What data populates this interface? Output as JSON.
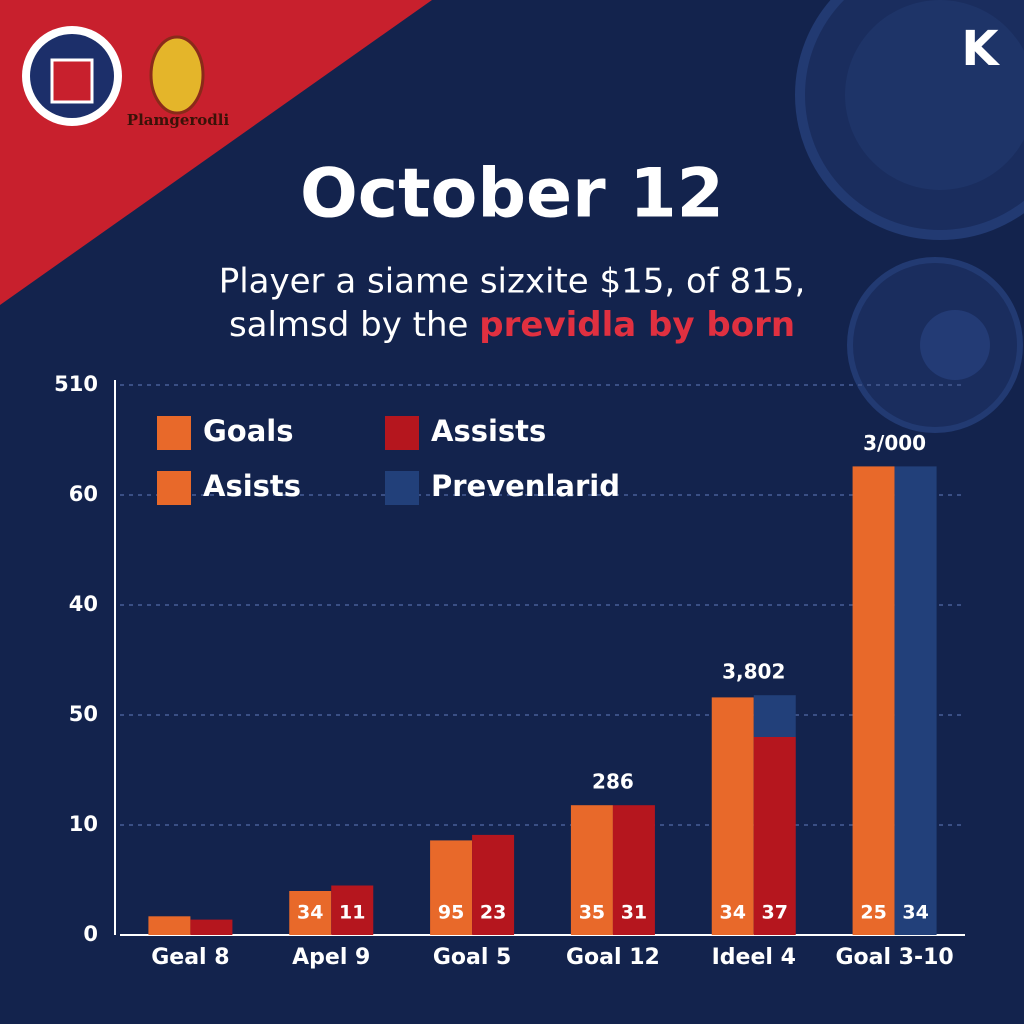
{
  "header": {
    "subtitle_line1": "Player a siame sizxite $15, of 815,",
    "subtitle_line2": "salmsd by the",
    "subtitle_highlight": "previdla by born",
    "logo_text": "Plamgerodli",
    "brand": "K"
  },
  "chart_data": {
    "type": "bar",
    "title": "October 12",
    "categories": [
      "Geal 8",
      "Apel 9",
      "Goal 5",
      "Goal 12",
      "Ideel 4",
      "Goal 3-10"
    ],
    "ylim": [
      0,
      50
    ],
    "yticks": [
      0,
      10,
      {
        "value": 20,
        "label": "50"
      },
      {
        "value": 30,
        "label": "40"
      },
      {
        "value": 40,
        "label": "60"
      },
      {
        "value": 50,
        "label": "510"
      }
    ],
    "grid": true,
    "series": [
      {
        "name": "Goals",
        "color": "#e8692a",
        "values": [
          1.7,
          4.0,
          8.6,
          11.8,
          21.6,
          42.6
        ],
        "bar_labels": [
          null,
          "34",
          "95",
          "35",
          "34",
          "25"
        ]
      },
      {
        "name": "Assists",
        "color": "#b5161e",
        "values": [
          1.4,
          4.5,
          9.1,
          11.8,
          18.0,
          null
        ],
        "bar_labels": [
          null,
          "11",
          "23",
          "31",
          "37",
          null
        ]
      },
      {
        "name": "Asists",
        "color": "#e8692a",
        "values": [
          null,
          null,
          null,
          null,
          null,
          null
        ]
      },
      {
        "name": "Prevenlarid",
        "color": "#22407a",
        "values": [
          null,
          null,
          null,
          null,
          3.8,
          42.6
        ],
        "bar_labels": [
          null,
          null,
          null,
          null,
          null,
          "34"
        ]
      }
    ],
    "annotations": [
      {
        "category": "Goal 12",
        "text": "286"
      },
      {
        "category": "Ideel 4",
        "text": "3,802"
      },
      {
        "category": "Goal 3-10",
        "text": "3/000"
      }
    ]
  }
}
